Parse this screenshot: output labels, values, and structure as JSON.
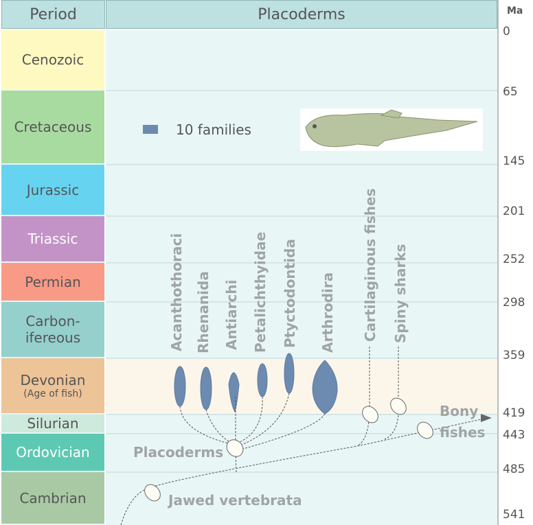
{
  "header": {
    "period": "Period",
    "main": "Placoderms",
    "ma": "Ma"
  },
  "periods": [
    {
      "name": "Cenozoic",
      "color": "#fef9c0"
    },
    {
      "name": "Cretaceous",
      "color": "#a8dba0"
    },
    {
      "name": "Jurassic",
      "color": "#66d4f0"
    },
    {
      "name": "Triassic",
      "color": "#c393c7"
    },
    {
      "name": "Permian",
      "color": "#f99a86"
    },
    {
      "name": "Carbon-\nifereous",
      "color": "#95d0cc"
    },
    {
      "name": "Devonian",
      "sub": "(Age of fish)",
      "color": "#edc398"
    },
    {
      "name": "Silurian",
      "color": "#cdeadc"
    },
    {
      "name": "Ordovician",
      "color": "#5dc9b3"
    },
    {
      "name": "Cambrian",
      "color": "#a9c9a5"
    }
  ],
  "ma": [
    "0",
    "65",
    "145",
    "201",
    "252",
    "298",
    "359",
    "419",
    "443",
    "485",
    "541"
  ],
  "legend": {
    "label": "10 families",
    "color": "#6d8bb0"
  },
  "taxa": [
    "Acanthothoraci",
    "Rhenanida",
    "Antiarchi",
    "Petalichthyidae",
    "Ptyctodontida",
    "Arthrodira",
    "Cartilaginous fishes",
    "Spiny sharks"
  ],
  "nodes": {
    "placoderms": "Placoderms",
    "jawed": "Jawed vertebrata",
    "bony1": "Bony",
    "bony2": "fishes"
  }
}
